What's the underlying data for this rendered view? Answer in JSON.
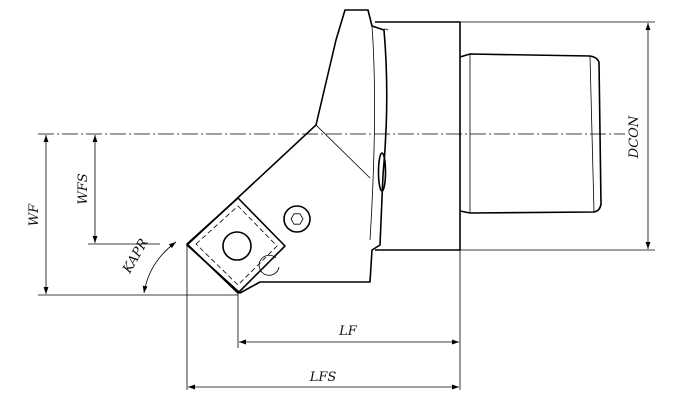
{
  "diagram": {
    "labels": {
      "wf": "WF",
      "wfs": "WFS",
      "kapr": "KAPR",
      "lf": "LF",
      "lfs": "LFS",
      "dcon": "DCON"
    }
  }
}
